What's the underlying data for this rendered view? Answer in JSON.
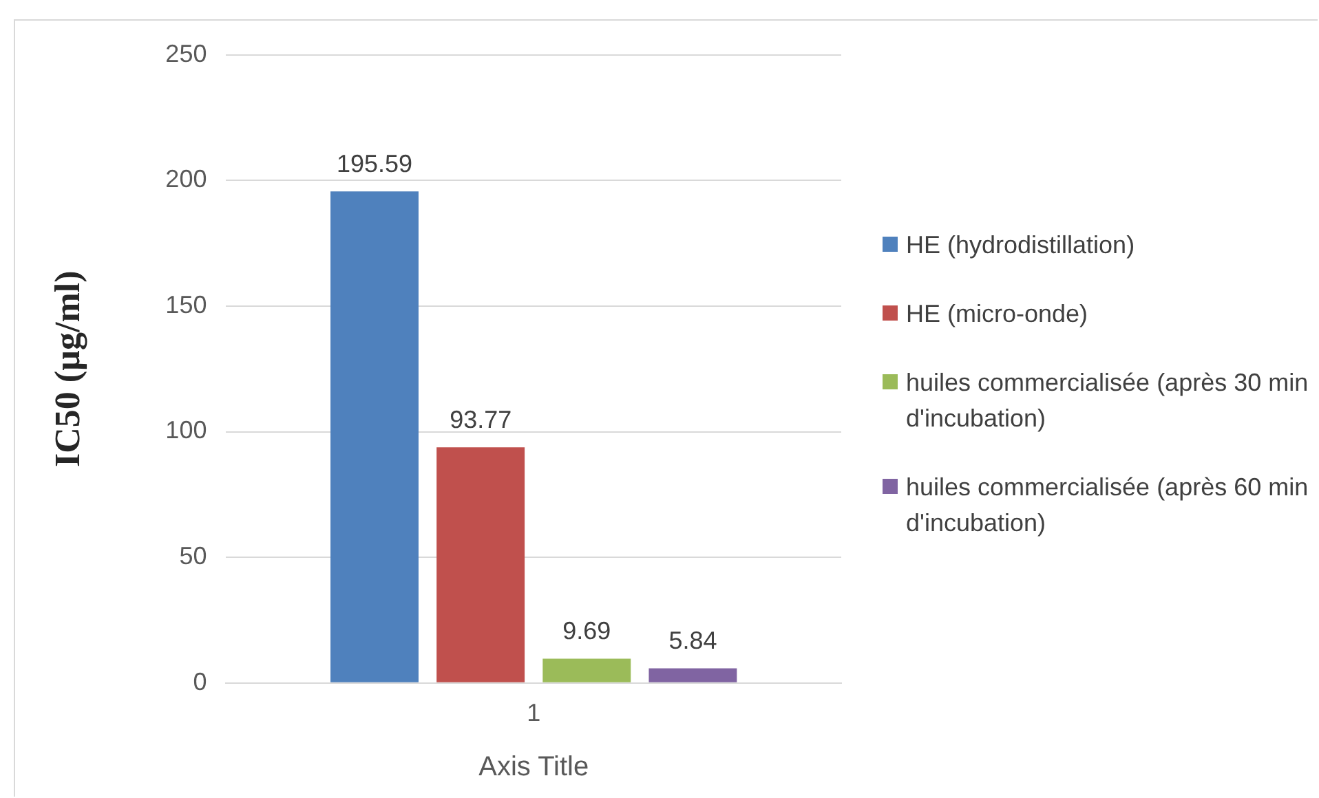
{
  "chart_data": {
    "type": "bar",
    "categories": [
      "1"
    ],
    "series": [
      {
        "name": "HE (hydrodistillation)",
        "color": "#4f81bd",
        "values": [
          195.59
        ]
      },
      {
        "name": "HE (micro-onde)",
        "color": "#c0504d",
        "values": [
          93.77
        ]
      },
      {
        "name": "huiles commercialisée (après 30 min d'incubation)",
        "color": "#9bbb59",
        "values": [
          9.69
        ]
      },
      {
        "name": "huiles commercialisée (après 60 min d'incubation)",
        "color": "#8064a2",
        "values": [
          5.84
        ]
      }
    ],
    "xlabel": "Axis Title",
    "ylabel": "IC50 (µg/ml)",
    "ylim": [
      0,
      250
    ],
    "yticks": [
      0,
      50,
      100,
      150,
      200,
      250
    ],
    "grid": "y",
    "legend": "right",
    "data_labels": true
  }
}
